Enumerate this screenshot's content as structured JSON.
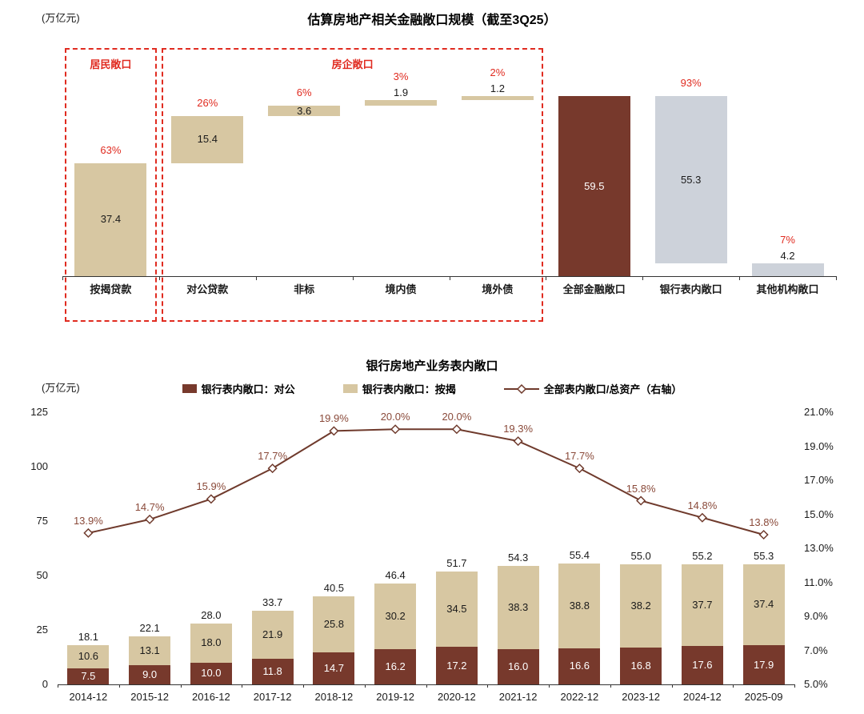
{
  "chart_data": [
    {
      "id": "top",
      "type": "bar",
      "subtype": "waterfall-decomposition",
      "title": "估算房地产相关金融敞口规模（截至3Q25）",
      "unit_label": "(万亿元)",
      "ylim": [
        0,
        62
      ],
      "grid": false,
      "colors": {
        "tan": "#d7c7a2",
        "brown": "#77392c",
        "gray": "#cdd2da",
        "accent_red": "#e02b20"
      },
      "bars": [
        {
          "category": "按揭贷款",
          "value": 37.4,
          "base": 0,
          "label": "37.4",
          "pct": "63%",
          "color_key": "tan",
          "label_pos": "in",
          "group": "居民敞口"
        },
        {
          "category": "对公贷款",
          "value": 15.4,
          "base": 37.4,
          "label": "15.4",
          "pct": "26%",
          "color_key": "tan",
          "label_pos": "in",
          "group": "房企敞口"
        },
        {
          "category": "非标",
          "value": 3.6,
          "base": 52.8,
          "label": "3.6",
          "pct": "6%",
          "color_key": "tan",
          "label_pos": "in",
          "group": "房企敞口"
        },
        {
          "category": "境内债",
          "value": 1.9,
          "base": 56.4,
          "label": "1.9",
          "pct": "3%",
          "color_key": "tan",
          "label_pos": "above",
          "group": "房企敞口"
        },
        {
          "category": "境外债",
          "value": 1.2,
          "base": 58.3,
          "label": "1.2",
          "pct": "2%",
          "color_key": "tan",
          "label_pos": "above",
          "group": "房企敞口"
        },
        {
          "category": "全部金融敞口",
          "value": 59.5,
          "base": 0,
          "label": "59.5",
          "pct": "",
          "color_key": "brown",
          "label_pos": "in",
          "group": ""
        },
        {
          "category": "银行表内敞口",
          "value": 55.3,
          "base": 4.2,
          "label": "55.3",
          "pct": "93%",
          "color_key": "gray",
          "label_pos": "in",
          "group": ""
        },
        {
          "category": "其他机构敞口",
          "value": 4.2,
          "base": 0,
          "label": "4.2",
          "pct": "7%",
          "color_key": "gray",
          "label_pos": "above",
          "group": ""
        }
      ],
      "group_boxes": [
        {
          "label": "居民敞口",
          "from": 0,
          "to": 0
        },
        {
          "label": "房企敞口",
          "from": 1,
          "to": 4
        }
      ]
    },
    {
      "id": "bottom",
      "type": "bar+line",
      "title": "银行房地产业务表内敞口",
      "unit_label": "(万亿元)",
      "grid": false,
      "legend_position": "top",
      "colors": {
        "brown": "#77392c",
        "tan": "#d7c7a2",
        "line": "#6f3a2c",
        "line_label": "#8a4a3a"
      },
      "legend": [
        "银行表内敞口：对公",
        "银行表内敞口：按揭",
        "全部表内敞口/总资产（右轴）"
      ],
      "categories": [
        "2014-12",
        "2015-12",
        "2016-12",
        "2017-12",
        "2018-12",
        "2019-12",
        "2020-12",
        "2021-12",
        "2022-12",
        "2023-12",
        "2024-12",
        "2025-09"
      ],
      "series": [
        {
          "name": "银行表内敞口：对公",
          "type": "bar",
          "axis": "left",
          "color_key": "brown",
          "values": [
            7.5,
            9.0,
            10.0,
            11.8,
            14.7,
            16.2,
            17.2,
            16.0,
            16.6,
            16.8,
            17.6,
            17.9
          ],
          "labels": [
            "7.5",
            "9.0",
            "10.0",
            "11.8",
            "14.7",
            "16.2",
            "17.2",
            "16.0",
            "16.6",
            "16.8",
            "17.6",
            "17.9"
          ]
        },
        {
          "name": "银行表内敞口：按揭",
          "type": "bar",
          "axis": "left",
          "color_key": "tan",
          "values": [
            10.6,
            13.1,
            18.0,
            21.9,
            25.8,
            30.2,
            34.5,
            38.3,
            38.8,
            38.2,
            37.7,
            37.4
          ],
          "labels": [
            "10.6",
            "13.1",
            "18.0",
            "21.9",
            "25.8",
            "30.2",
            "34.5",
            "38.3",
            "38.8",
            "38.2",
            "37.7",
            "37.4"
          ]
        },
        {
          "name": "全部表内敞口/总资产（右轴）",
          "type": "line",
          "axis": "right",
          "color_key": "line",
          "values": [
            13.9,
            14.7,
            15.9,
            17.7,
            19.9,
            20.0,
            20.0,
            19.3,
            17.7,
            15.8,
            14.8,
            13.8
          ],
          "labels": [
            "13.9%",
            "14.7%",
            "15.9%",
            "17.7%",
            "19.9%",
            "20.0%",
            "20.0%",
            "19.3%",
            "17.7%",
            "15.8%",
            "14.8%",
            "13.8%"
          ]
        }
      ],
      "total_labels": [
        "18.1",
        "22.1",
        "28.0",
        "33.7",
        "40.5",
        "46.4",
        "51.7",
        "54.3",
        "55.4",
        "55.0",
        "55.2",
        "55.3"
      ],
      "left_axis": {
        "min": 0,
        "max": 125,
        "tick_labels": [
          "0",
          "25",
          "50",
          "75",
          "100",
          "125"
        ]
      },
      "right_axis": {
        "min": 5.0,
        "max": 21.0,
        "tick_labels": [
          "5.0%",
          "7.0%",
          "9.0%",
          "11.0%",
          "13.0%",
          "15.0%",
          "17.0%",
          "19.0%",
          "21.0%"
        ]
      }
    }
  ]
}
